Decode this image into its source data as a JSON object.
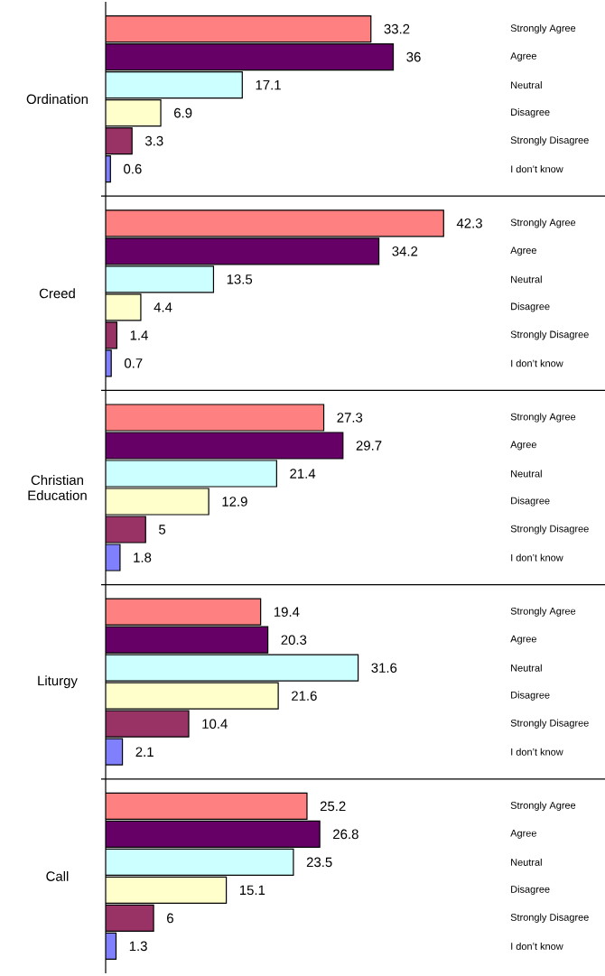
{
  "chart_data": {
    "type": "bar",
    "orientation": "horizontal",
    "categories": [
      "Ordination",
      "Creed",
      "Christian Education",
      "Liturgy",
      "Call"
    ],
    "series": [
      {
        "name": "Strongly Agree",
        "color": "#ff8080",
        "values": [
          33.2,
          42.3,
          27.3,
          19.4,
          25.2
        ]
      },
      {
        "name": "Agree",
        "color": "#660066",
        "values": [
          36,
          34.2,
          29.7,
          20.3,
          26.8
        ]
      },
      {
        "name": "Neutral",
        "color": "#ccffff",
        "values": [
          17.1,
          13.5,
          21.4,
          31.6,
          23.5
        ]
      },
      {
        "name": "Disagree",
        "color": "#ffffcc",
        "values": [
          6.9,
          4.4,
          12.9,
          21.6,
          15.1
        ]
      },
      {
        "name": "Strongly Disagree",
        "color": "#993366",
        "values": [
          3.3,
          1.4,
          5,
          10.4,
          6
        ]
      },
      {
        "name": "I don’t know",
        "color": "#8080ff",
        "values": [
          0.6,
          0.7,
          1.8,
          2.1,
          1.3
        ]
      }
    ],
    "xlim": [
      0,
      62.5
    ],
    "data_labels": true,
    "grid": "y",
    "tick_labels": "y"
  }
}
